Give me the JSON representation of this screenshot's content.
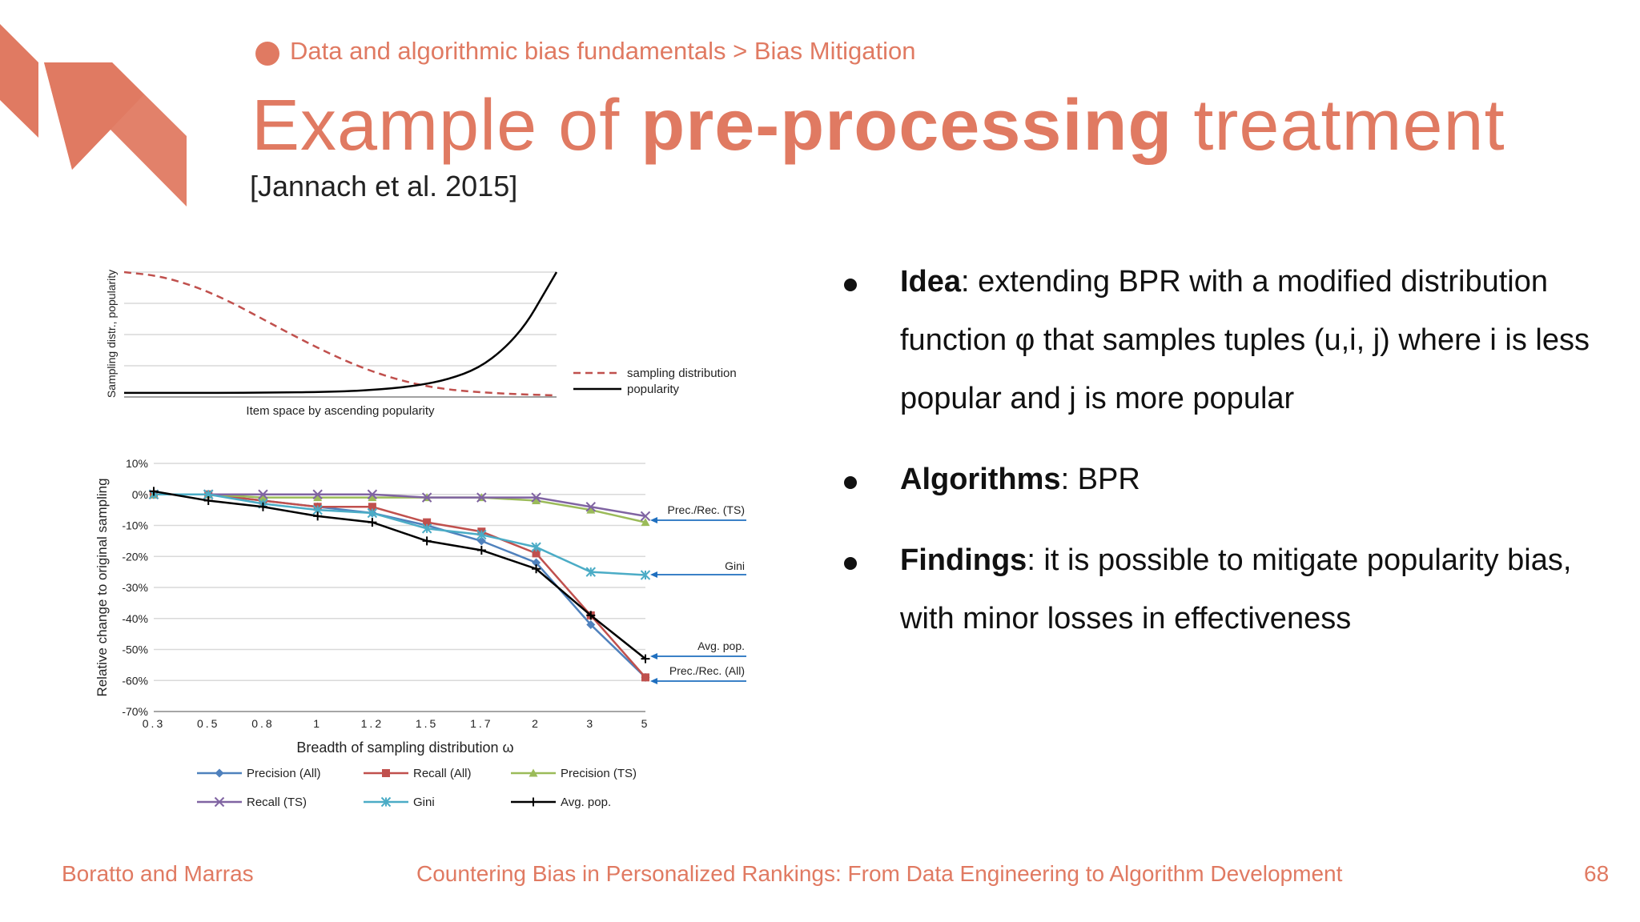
{
  "header": {
    "breadcrumb": "Data and algorithmic bias fundamentals > Bias Mitigation",
    "title_pre": "Example of ",
    "title_bold": "pre-processing",
    "title_post": " treatment",
    "citation": "[Jannach et al. 2015]"
  },
  "bullets": [
    {
      "term": "Idea",
      "text": ": extending BPR with a modified distribution function φ that samples tuples (u,i, j) where i is less popular and j is more popular"
    },
    {
      "term": "Algorithms",
      "text": ": BPR"
    },
    {
      "term": "Findings",
      "text": ": it is possible to mitigate popularity bias, with minor losses in effectiveness"
    }
  ],
  "footer": {
    "left": "Boratto and Marras",
    "center": "Countering Bias in Personalized Rankings: From Data Engineering to Algorithm Development",
    "page": "68"
  },
  "colors": {
    "accent": "#E07A62",
    "precision_all": "#4F81BD",
    "recall_all": "#C0504D",
    "precision_ts": "#9BBB59",
    "recall_ts": "#8064A2",
    "gini": "#4BACC6",
    "avg_pop": "#000000"
  },
  "chart_data": [
    {
      "type": "line",
      "xlabel": "Item space by ascending popularity",
      "ylabel": "Sampling distr., popularity",
      "series": [
        {
          "name": "sampling distribution",
          "style": "dashed",
          "color": "#C0504D",
          "points": [
            [
              0,
              1.0
            ],
            [
              0.08,
              0.97
            ],
            [
              0.16,
              0.89
            ],
            [
              0.24,
              0.77
            ],
            [
              0.32,
              0.62
            ],
            [
              0.4,
              0.47
            ],
            [
              0.48,
              0.33
            ],
            [
              0.56,
              0.21
            ],
            [
              0.64,
              0.12
            ],
            [
              0.72,
              0.06
            ],
            [
              0.8,
              0.03
            ],
            [
              0.9,
              0.01
            ],
            [
              1.0,
              0.0
            ]
          ]
        },
        {
          "name": "popularity",
          "style": "solid",
          "color": "#000000",
          "points": [
            [
              0,
              0.02
            ],
            [
              0.3,
              0.02
            ],
            [
              0.5,
              0.03
            ],
            [
              0.6,
              0.05
            ],
            [
              0.68,
              0.08
            ],
            [
              0.75,
              0.13
            ],
            [
              0.82,
              0.22
            ],
            [
              0.88,
              0.38
            ],
            [
              0.93,
              0.58
            ],
            [
              0.97,
              0.82
            ],
            [
              1.0,
              1.0
            ]
          ]
        }
      ]
    },
    {
      "type": "line",
      "xlabel": "Breadth of sampling distribution ω",
      "ylabel": "Relative change to original sampling",
      "categories": [
        "0.3",
        "0.5",
        "0.8",
        "1",
        "1.2",
        "1.5",
        "1.7",
        "2",
        "3",
        "5"
      ],
      "ylim": [
        -70,
        10
      ],
      "yticks": [
        10,
        0,
        -10,
        -20,
        -30,
        -40,
        -50,
        -60,
        -70
      ],
      "ytick_labels": [
        "10%",
        "0%",
        "-10%",
        "-20%",
        "-30%",
        "-40%",
        "-50%",
        "-60%",
        "-70%"
      ],
      "series": [
        {
          "name": "Precision (All)",
          "marker": "diamond",
          "color": "#4F81BD",
          "values": [
            0,
            0,
            -2,
            -4,
            -6,
            -10,
            -15,
            -22,
            -42,
            -59
          ]
        },
        {
          "name": "Recall (All)",
          "marker": "square",
          "color": "#C0504D",
          "values": [
            0,
            0,
            -2,
            -4,
            -4,
            -9,
            -12,
            -19,
            -39,
            -59
          ]
        },
        {
          "name": "Precision (TS)",
          "marker": "triangle",
          "color": "#9BBB59",
          "values": [
            0,
            0,
            -1,
            -1,
            -1,
            -1,
            -1,
            -2,
            -5,
            -9
          ]
        },
        {
          "name": "Recall (TS)",
          "marker": "x",
          "color": "#8064A2",
          "values": [
            0,
            0,
            0,
            0,
            0,
            -1,
            -1,
            -1,
            -4,
            -7
          ]
        },
        {
          "name": "Gini",
          "marker": "star",
          "color": "#4BACC6",
          "values": [
            0,
            0,
            -3,
            -5,
            -6,
            -11,
            -13,
            -17,
            -25,
            -26
          ]
        },
        {
          "name": "Avg. pop.",
          "marker": "plus",
          "color": "#000000",
          "values": [
            1,
            -2,
            -4,
            -7,
            -9,
            -15,
            -18,
            -24,
            -39,
            -53
          ]
        }
      ],
      "annotations": [
        {
          "text": "Prec./Rec. (TS)",
          "series": "Recall (TS)"
        },
        {
          "text": "Gini",
          "series": "Gini"
        },
        {
          "text": "Avg. pop.",
          "series": "Avg. pop."
        },
        {
          "text": "Prec./Rec. (All)",
          "series": "Recall (All)"
        }
      ]
    }
  ]
}
